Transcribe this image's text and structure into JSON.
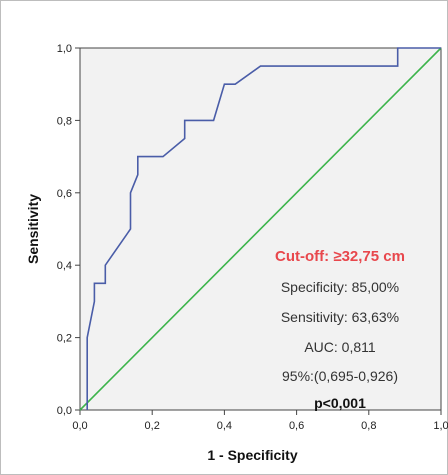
{
  "chart_data": {
    "type": "line",
    "title": "",
    "xlabel": "1 - Specificity",
    "ylabel": "Sensitivity",
    "xlim": [
      0,
      1
    ],
    "ylim": [
      0,
      1
    ],
    "x_ticks": [
      "0,0",
      "0,2",
      "0,4",
      "0,6",
      "0,8",
      "1,0"
    ],
    "y_ticks": [
      "0,0",
      "0,2",
      "0,4",
      "0,6",
      "0,8",
      "1,0"
    ],
    "grid": false,
    "legend": "none",
    "colors": {
      "roc": "#4a5da8",
      "reference": "#3cb44b",
      "cutoff_text": "#e8474c",
      "plot_bg": "#f2f2f2"
    },
    "series": [
      {
        "points": [
          [
            0.02,
            0.0
          ],
          [
            0.02,
            0.2
          ],
          [
            0.04,
            0.3
          ],
          [
            0.04,
            0.35
          ],
          [
            0.07,
            0.35
          ],
          [
            0.07,
            0.4
          ],
          [
            0.14,
            0.5
          ],
          [
            0.14,
            0.6
          ],
          [
            0.16,
            0.65
          ],
          [
            0.16,
            0.7
          ],
          [
            0.23,
            0.7
          ],
          [
            0.29,
            0.75
          ],
          [
            0.29,
            0.8
          ],
          [
            0.37,
            0.8
          ],
          [
            0.4,
            0.9
          ],
          [
            0.43,
            0.9
          ],
          [
            0.5,
            0.95
          ],
          [
            0.88,
            0.95
          ],
          [
            0.88,
            1.0
          ],
          [
            1.0,
            1.0
          ]
        ]
      },
      {
        "points": [
          [
            0,
            0
          ],
          [
            1,
            1
          ]
        ]
      }
    ],
    "annotations": {
      "cutoff": "Cut-off: ≥32,75 cm",
      "specificity": "Specificity: 85,00%",
      "sensitivity": "Sensitivity: 63,63%",
      "auc": "AUC: 0,811",
      "ci": "95%:(0,695-0,926)",
      "p": "p<0,001"
    }
  }
}
